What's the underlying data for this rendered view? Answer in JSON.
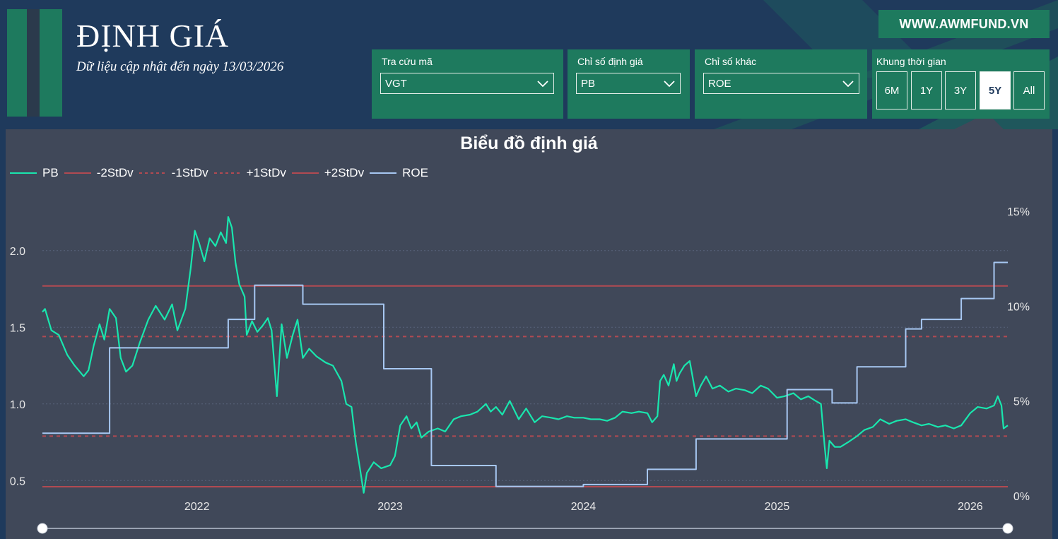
{
  "page": {
    "title": "ĐỊNH GIÁ",
    "subtitle": "Dữ liệu cập nhật đến ngày 13/03/2026",
    "website": "WWW.AWMFUND.VN"
  },
  "filters": {
    "ticker": {
      "label": "Tra cứu mã",
      "value": "VGT"
    },
    "valuation_metric": {
      "label": "Chỉ số định giá",
      "value": "PB"
    },
    "other_metric": {
      "label": "Chỉ số khác",
      "value": "ROE"
    },
    "timeframe": {
      "label": "Khung thời gian",
      "options": [
        "6M",
        "1Y",
        "3Y",
        "5Y",
        "All"
      ],
      "selected": "5Y"
    }
  },
  "icons": {
    "dropdown": "chevron-down-icon",
    "range_handle": "slider-handle-icon"
  },
  "colors": {
    "background": "#1f3a5c",
    "card": "#1e7a5e",
    "chart_bg": "#404859",
    "pb": "#19e6ae",
    "roe": "#a7c7f2",
    "stdv": "#b24a52"
  },
  "chart_data": {
    "type": "line",
    "title": "Biểu đồ định giá",
    "legend": [
      {
        "name": "PB",
        "style": "solid",
        "color": "#19e6ae"
      },
      {
        "name": "-2StDv",
        "style": "solid",
        "color": "#b24a52"
      },
      {
        "name": "-1StDv",
        "style": "dashed",
        "color": "#b24a52"
      },
      {
        "name": "+1StDv",
        "style": "dashed",
        "color": "#b24a52"
      },
      {
        "name": "+2StDv",
        "style": "solid",
        "color": "#b24a52"
      },
      {
        "name": "ROE",
        "style": "solid",
        "color": "#a7c7f2"
      }
    ],
    "legend_position": "top-left",
    "x_ticks": [
      "2022",
      "2023",
      "2024",
      "2025",
      "2026"
    ],
    "x_range": [
      "2021-03-15",
      "2026-03-13"
    ],
    "y_left_ticks": [
      "0.5",
      "1.0",
      "1.5",
      "2.0"
    ],
    "y_left_range": [
      0.4,
      2.4
    ],
    "y_right_ticks": [
      "0%",
      "5%",
      "10%",
      "15%"
    ],
    "y_right_range": [
      0,
      15
    ],
    "stdv_lines": {
      "-2StDv": 0.46,
      "-1StDv": 0.79,
      "+1StDv": 1.44,
      "+2StDv": 1.77
    },
    "series": [
      {
        "name": "PB",
        "axis": "left",
        "points": [
          [
            "2021-03-15",
            1.6
          ],
          [
            "2021-03-20",
            1.62
          ],
          [
            "2021-04-01",
            1.48
          ],
          [
            "2021-04-15",
            1.45
          ],
          [
            "2021-05-01",
            1.32
          ],
          [
            "2021-05-15",
            1.25
          ],
          [
            "2021-06-01",
            1.18
          ],
          [
            "2021-06-10",
            1.22
          ],
          [
            "2021-06-20",
            1.38
          ],
          [
            "2021-07-01",
            1.52
          ],
          [
            "2021-07-10",
            1.42
          ],
          [
            "2021-07-20",
            1.62
          ],
          [
            "2021-08-01",
            1.56
          ],
          [
            "2021-08-10",
            1.3
          ],
          [
            "2021-08-20",
            1.21
          ],
          [
            "2021-09-01",
            1.25
          ],
          [
            "2021-09-15",
            1.4
          ],
          [
            "2021-10-01",
            1.55
          ],
          [
            "2021-10-15",
            1.64
          ],
          [
            "2021-11-01",
            1.55
          ],
          [
            "2021-11-15",
            1.65
          ],
          [
            "2021-11-25",
            1.48
          ],
          [
            "2021-12-10",
            1.62
          ],
          [
            "2021-12-20",
            1.88
          ],
          [
            "2021-12-28",
            2.13
          ],
          [
            "2022-01-05",
            2.05
          ],
          [
            "2022-01-15",
            1.93
          ],
          [
            "2022-01-25",
            2.08
          ],
          [
            "2022-02-05",
            2.03
          ],
          [
            "2022-02-15",
            2.12
          ],
          [
            "2022-02-25",
            2.05
          ],
          [
            "2022-03-01",
            2.22
          ],
          [
            "2022-03-08",
            2.15
          ],
          [
            "2022-03-15",
            1.92
          ],
          [
            "2022-03-22",
            1.78
          ],
          [
            "2022-04-01",
            1.7
          ],
          [
            "2022-04-05",
            1.45
          ],
          [
            "2022-04-15",
            1.54
          ],
          [
            "2022-04-25",
            1.47
          ],
          [
            "2022-05-05",
            1.51
          ],
          [
            "2022-05-15",
            1.56
          ],
          [
            "2022-05-22",
            1.48
          ],
          [
            "2022-06-01",
            1.05
          ],
          [
            "2022-06-10",
            1.52
          ],
          [
            "2022-06-20",
            1.3
          ],
          [
            "2022-07-01",
            1.45
          ],
          [
            "2022-07-10",
            1.55
          ],
          [
            "2022-07-20",
            1.3
          ],
          [
            "2022-08-01",
            1.36
          ],
          [
            "2022-08-15",
            1.31
          ],
          [
            "2022-09-01",
            1.27
          ],
          [
            "2022-09-15",
            1.25
          ],
          [
            "2022-10-01",
            1.15
          ],
          [
            "2022-10-10",
            1.0
          ],
          [
            "2022-10-20",
            0.98
          ],
          [
            "2022-10-28",
            0.75
          ],
          [
            "2022-11-05",
            0.58
          ],
          [
            "2022-11-12",
            0.42
          ],
          [
            "2022-11-18",
            0.55
          ],
          [
            "2022-12-01",
            0.62
          ],
          [
            "2022-12-15",
            0.58
          ],
          [
            "2023-01-01",
            0.6
          ],
          [
            "2023-01-10",
            0.66
          ],
          [
            "2023-01-20",
            0.86
          ],
          [
            "2023-02-01",
            0.92
          ],
          [
            "2023-02-10",
            0.84
          ],
          [
            "2023-02-20",
            0.88
          ],
          [
            "2023-03-01",
            0.78
          ],
          [
            "2023-03-15",
            0.82
          ],
          [
            "2023-04-01",
            0.84
          ],
          [
            "2023-04-15",
            0.82
          ],
          [
            "2023-05-01",
            0.9
          ],
          [
            "2023-05-15",
            0.92
          ],
          [
            "2023-06-01",
            0.93
          ],
          [
            "2023-06-15",
            0.95
          ],
          [
            "2023-07-01",
            1.0
          ],
          [
            "2023-07-10",
            0.95
          ],
          [
            "2023-07-20",
            0.98
          ],
          [
            "2023-08-01",
            0.93
          ],
          [
            "2023-08-15",
            1.02
          ],
          [
            "2023-09-01",
            0.9
          ],
          [
            "2023-09-15",
            0.97
          ],
          [
            "2023-10-01",
            0.88
          ],
          [
            "2023-10-15",
            0.92
          ],
          [
            "2023-11-01",
            0.91
          ],
          [
            "2023-11-15",
            0.9
          ],
          [
            "2023-12-01",
            0.92
          ],
          [
            "2023-12-15",
            0.91
          ],
          [
            "2024-01-01",
            0.91
          ],
          [
            "2024-01-15",
            0.9
          ],
          [
            "2024-02-01",
            0.9
          ],
          [
            "2024-02-15",
            0.89
          ],
          [
            "2024-03-01",
            0.91
          ],
          [
            "2024-03-15",
            0.95
          ],
          [
            "2024-04-01",
            0.94
          ],
          [
            "2024-04-15",
            0.95
          ],
          [
            "2024-05-01",
            0.94
          ],
          [
            "2024-05-10",
            0.88
          ],
          [
            "2024-05-20",
            0.92
          ],
          [
            "2024-05-25",
            1.15
          ],
          [
            "2024-06-01",
            1.19
          ],
          [
            "2024-06-10",
            1.12
          ],
          [
            "2024-06-20",
            1.26
          ],
          [
            "2024-06-25",
            1.15
          ],
          [
            "2024-07-01",
            1.2
          ],
          [
            "2024-07-10",
            1.25
          ],
          [
            "2024-07-20",
            1.28
          ],
          [
            "2024-08-01",
            1.05
          ],
          [
            "2024-08-10",
            1.12
          ],
          [
            "2024-08-20",
            1.18
          ],
          [
            "2024-09-01",
            1.1
          ],
          [
            "2024-09-15",
            1.12
          ],
          [
            "2024-10-01",
            1.08
          ],
          [
            "2024-10-15",
            1.1
          ],
          [
            "2024-11-01",
            1.09
          ],
          [
            "2024-11-15",
            1.07
          ],
          [
            "2024-12-01",
            1.12
          ],
          [
            "2024-12-15",
            1.1
          ],
          [
            "2025-01-01",
            1.04
          ],
          [
            "2025-01-15",
            1.05
          ],
          [
            "2025-02-01",
            1.07
          ],
          [
            "2025-02-15",
            1.03
          ],
          [
            "2025-03-01",
            1.05
          ],
          [
            "2025-03-15",
            1.02
          ],
          [
            "2025-03-25",
            1.0
          ],
          [
            "2025-04-01",
            0.72
          ],
          [
            "2025-04-05",
            0.58
          ],
          [
            "2025-04-10",
            0.76
          ],
          [
            "2025-04-20",
            0.72
          ],
          [
            "2025-05-01",
            0.72
          ],
          [
            "2025-05-15",
            0.75
          ],
          [
            "2025-06-01",
            0.79
          ],
          [
            "2025-06-15",
            0.83
          ],
          [
            "2025-07-01",
            0.85
          ],
          [
            "2025-07-15",
            0.9
          ],
          [
            "2025-08-01",
            0.87
          ],
          [
            "2025-08-15",
            0.89
          ],
          [
            "2025-09-01",
            0.9
          ],
          [
            "2025-09-15",
            0.88
          ],
          [
            "2025-10-01",
            0.86
          ],
          [
            "2025-10-15",
            0.87
          ],
          [
            "2025-11-01",
            0.85
          ],
          [
            "2025-11-15",
            0.86
          ],
          [
            "2025-12-01",
            0.84
          ],
          [
            "2025-12-15",
            0.86
          ],
          [
            "2026-01-01",
            0.94
          ],
          [
            "2026-01-15",
            0.98
          ],
          [
            "2026-02-01",
            0.97
          ],
          [
            "2026-02-15",
            0.99
          ],
          [
            "2026-02-22",
            1.05
          ],
          [
            "2026-03-01",
            0.99
          ],
          [
            "2026-03-05",
            0.84
          ],
          [
            "2026-03-13",
            0.86
          ]
        ]
      },
      {
        "name": "ROE",
        "axis": "right",
        "points": [
          [
            "2021-03-15",
            3.3
          ],
          [
            "2021-07-20",
            3.3
          ],
          [
            "2021-07-20",
            7.8
          ],
          [
            "2022-03-01",
            7.8
          ],
          [
            "2022-03-01",
            9.3
          ],
          [
            "2022-04-20",
            9.3
          ],
          [
            "2022-04-20",
            11.1
          ],
          [
            "2022-07-20",
            11.1
          ],
          [
            "2022-07-20",
            10.1
          ],
          [
            "2022-12-20",
            10.1
          ],
          [
            "2022-12-20",
            6.7
          ],
          [
            "2023-03-20",
            6.7
          ],
          [
            "2023-03-20",
            1.6
          ],
          [
            "2023-07-20",
            1.6
          ],
          [
            "2023-07-20",
            0.5
          ],
          [
            "2024-01-01",
            0.5
          ],
          [
            "2024-01-01",
            0.6
          ],
          [
            "2024-05-01",
            0.6
          ],
          [
            "2024-05-01",
            1.4
          ],
          [
            "2024-08-01",
            1.4
          ],
          [
            "2024-08-01",
            3.0
          ],
          [
            "2025-01-20",
            3.0
          ],
          [
            "2025-01-20",
            5.6
          ],
          [
            "2025-04-15",
            5.6
          ],
          [
            "2025-04-15",
            4.9
          ],
          [
            "2025-06-01",
            4.9
          ],
          [
            "2025-06-01",
            6.8
          ],
          [
            "2025-09-01",
            6.8
          ],
          [
            "2025-09-01",
            8.8
          ],
          [
            "2025-10-01",
            8.8
          ],
          [
            "2025-10-01",
            9.3
          ],
          [
            "2025-12-15",
            9.3
          ],
          [
            "2025-12-15",
            10.4
          ],
          [
            "2026-02-15",
            10.4
          ],
          [
            "2026-02-15",
            12.3
          ],
          [
            "2026-03-13",
            12.3
          ]
        ]
      }
    ]
  },
  "range_slider": {
    "start": "2021-03-15",
    "end": "2026-03-13"
  }
}
